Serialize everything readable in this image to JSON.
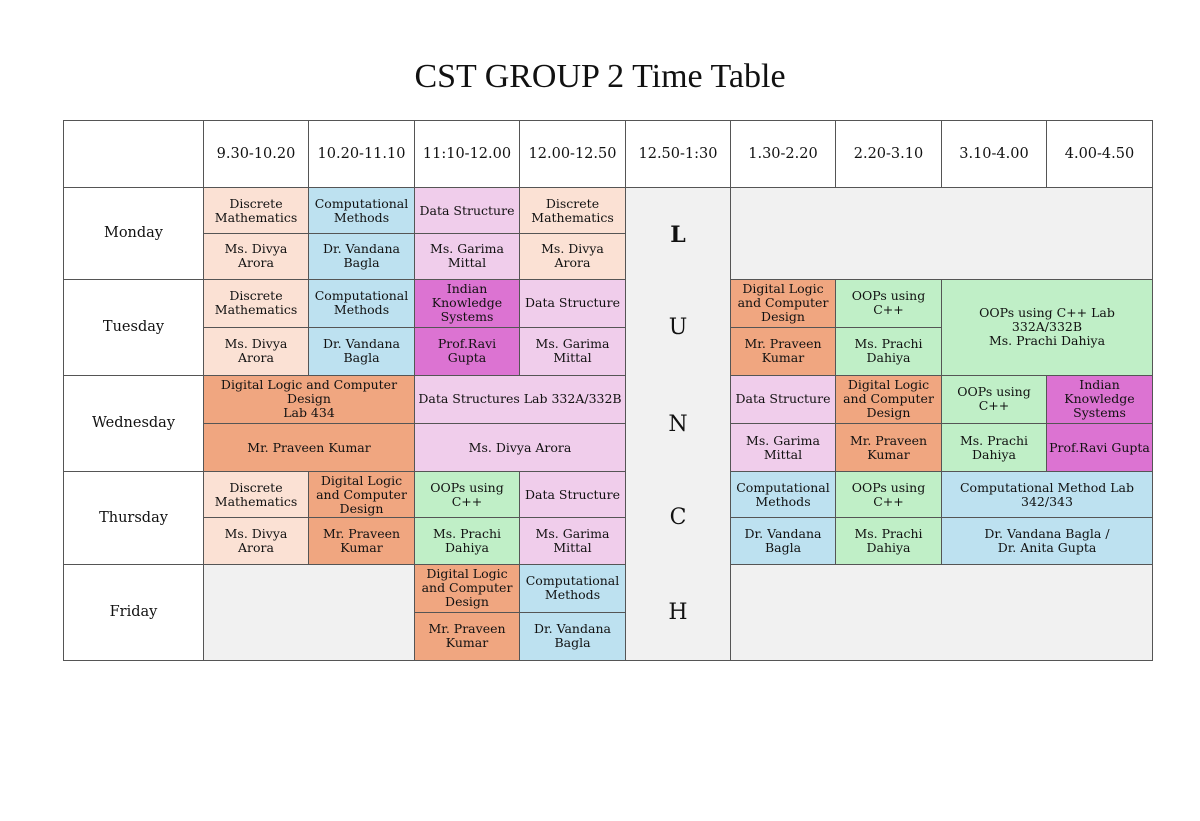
{
  "title": "CST GROUP 2 Time Table",
  "times": [
    "9.30-10.20",
    "10.20-11.10",
    "11:10-12.00",
    "12.00-12.50",
    "12.50-1:30",
    "1.30-2.20",
    "2.20-3.10",
    "3.10-4.00",
    "4.00-4.50"
  ],
  "lunch_letters": [
    "L",
    "U",
    "N",
    "C",
    "H"
  ],
  "monday": {
    "day": "Monday",
    "s1": {
      "subject": "Discrete Mathematics",
      "teacher": "Ms. Divya Arora"
    },
    "s2": {
      "subject": "Computational Methods",
      "teacher": "Dr. Vandana Bagla"
    },
    "s3": {
      "subject": "Data Structure",
      "teacher": "Ms. Garima Mittal"
    },
    "s4": {
      "subject": "Discrete Mathematics",
      "teacher": "Ms. Divya Arora"
    }
  },
  "tuesday": {
    "day": "Tuesday",
    "s1": {
      "subject": "Discrete Mathematics",
      "teacher": "Ms. Divya Arora"
    },
    "s2": {
      "subject": "Computational Methods",
      "teacher": "Dr. Vandana Bagla"
    },
    "s3": {
      "subject": "Indian Knowledge Systems",
      "teacher": "Prof.Ravi Gupta"
    },
    "s4": {
      "subject": "Data Structure",
      "teacher": "Ms. Garima Mittal"
    },
    "s6": {
      "subject": "Digital Logic and Computer Design",
      "teacher": "Mr. Praveen Kumar"
    },
    "s7": {
      "subject": "OOPs using C++",
      "teacher": "Ms. Prachi Dahiya"
    },
    "s89_line1": "OOPs using C++ Lab 332A/332B",
    "s89_line2": "Ms. Prachi Dahiya"
  },
  "wednesday": {
    "day": "Wednesday",
    "s12": {
      "subject_line1": "Digital Logic and Computer Design",
      "subject_line2": "Lab 434",
      "teacher": "Mr. Praveen Kumar"
    },
    "s34": {
      "subject": "Data Structures Lab 332A/332B",
      "teacher": "Ms. Divya Arora"
    },
    "s6": {
      "subject": "Data Structure",
      "teacher": "Ms. Garima Mittal"
    },
    "s7": {
      "subject": "Digital Logic and Computer Design",
      "teacher": "Mr. Praveen Kumar"
    },
    "s8": {
      "subject": "OOPs using C++",
      "teacher": "Ms. Prachi Dahiya"
    },
    "s9": {
      "subject": "Indian Knowledge Systems",
      "teacher": "Prof.Ravi Gupta"
    }
  },
  "thursday": {
    "day": "Thursday",
    "s1": {
      "subject": "Discrete Mathematics",
      "teacher": "Ms. Divya Arora"
    },
    "s2": {
      "subject": "Digital Logic and Computer Design",
      "teacher": "Mr. Praveen Kumar"
    },
    "s3": {
      "subject": "OOPs using C++",
      "teacher": "Ms. Prachi Dahiya"
    },
    "s4": {
      "subject": "Data Structure",
      "teacher": "Ms. Garima Mittal"
    },
    "s6": {
      "subject": "Computational Methods",
      "teacher": "Dr. Vandana Bagla"
    },
    "s7": {
      "subject": "OOPs using C++",
      "teacher": "Ms. Prachi Dahiya"
    },
    "s89": {
      "subject": "Computational Method Lab 342/343",
      "teacher": "Dr. Vandana Bagla / Dr. Anita Gupta"
    }
  },
  "friday": {
    "day": "Friday",
    "s3": {
      "subject": "Digital Logic and Computer Design",
      "teacher": "Mr. Praveen Kumar"
    },
    "s4": {
      "subject": "Computational Methods",
      "teacher": "Dr. Vandana Bagla"
    }
  },
  "colors": {
    "peach": "#fbe1d4",
    "blue": "#bde1f0",
    "pink": "#f0cdeb",
    "magenta": "#dc73d2",
    "orange": "#f0a680",
    "green": "#c0efc7",
    "grey": "#f1f1f1"
  }
}
